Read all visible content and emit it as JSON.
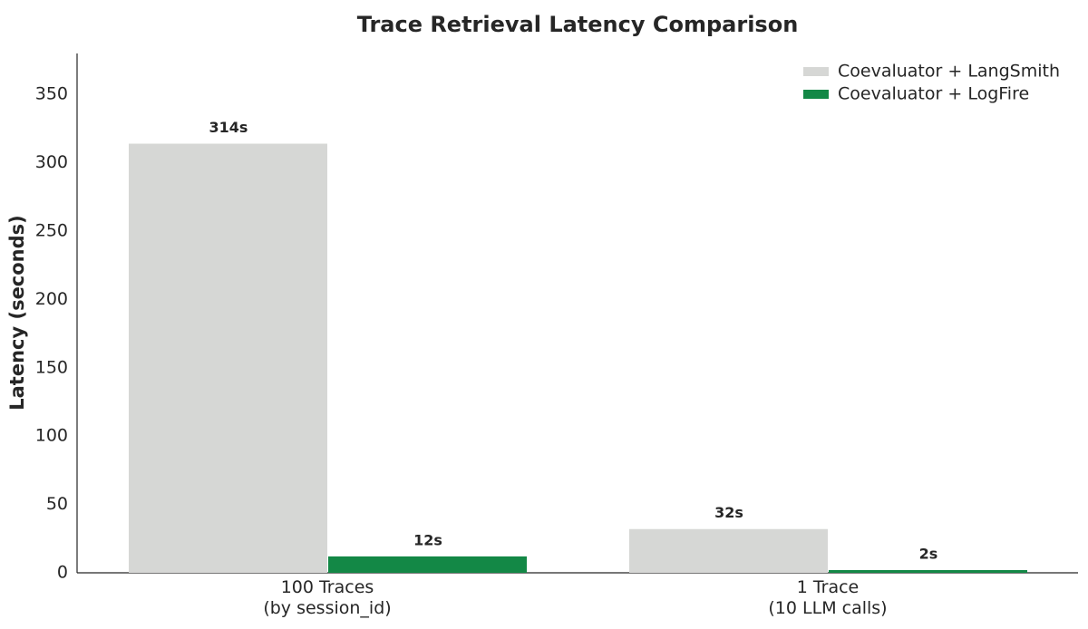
{
  "chart_data": {
    "type": "bar",
    "title": "Trace Retrieval Latency Comparison",
    "y_label": "Latency (seconds)",
    "categories": [
      "100 Traces\n(by session_id)",
      "1 Trace\n(10 LLM calls)"
    ],
    "series": [
      {
        "name": "Coevaluator + LangSmith",
        "color": "#d6d7d5",
        "values": [
          314,
          32
        ],
        "value_labels": [
          "314s",
          "32s"
        ]
      },
      {
        "name": "Coevaluator + LogFire",
        "color": "#138846",
        "values": [
          12,
          2
        ],
        "value_labels": [
          "12s",
          "2s"
        ]
      }
    ],
    "ylim": [
      0,
      380
    ],
    "yticks": [
      0,
      50,
      100,
      150,
      200,
      250,
      300,
      350
    ],
    "grid": false,
    "legend": "upper right"
  }
}
